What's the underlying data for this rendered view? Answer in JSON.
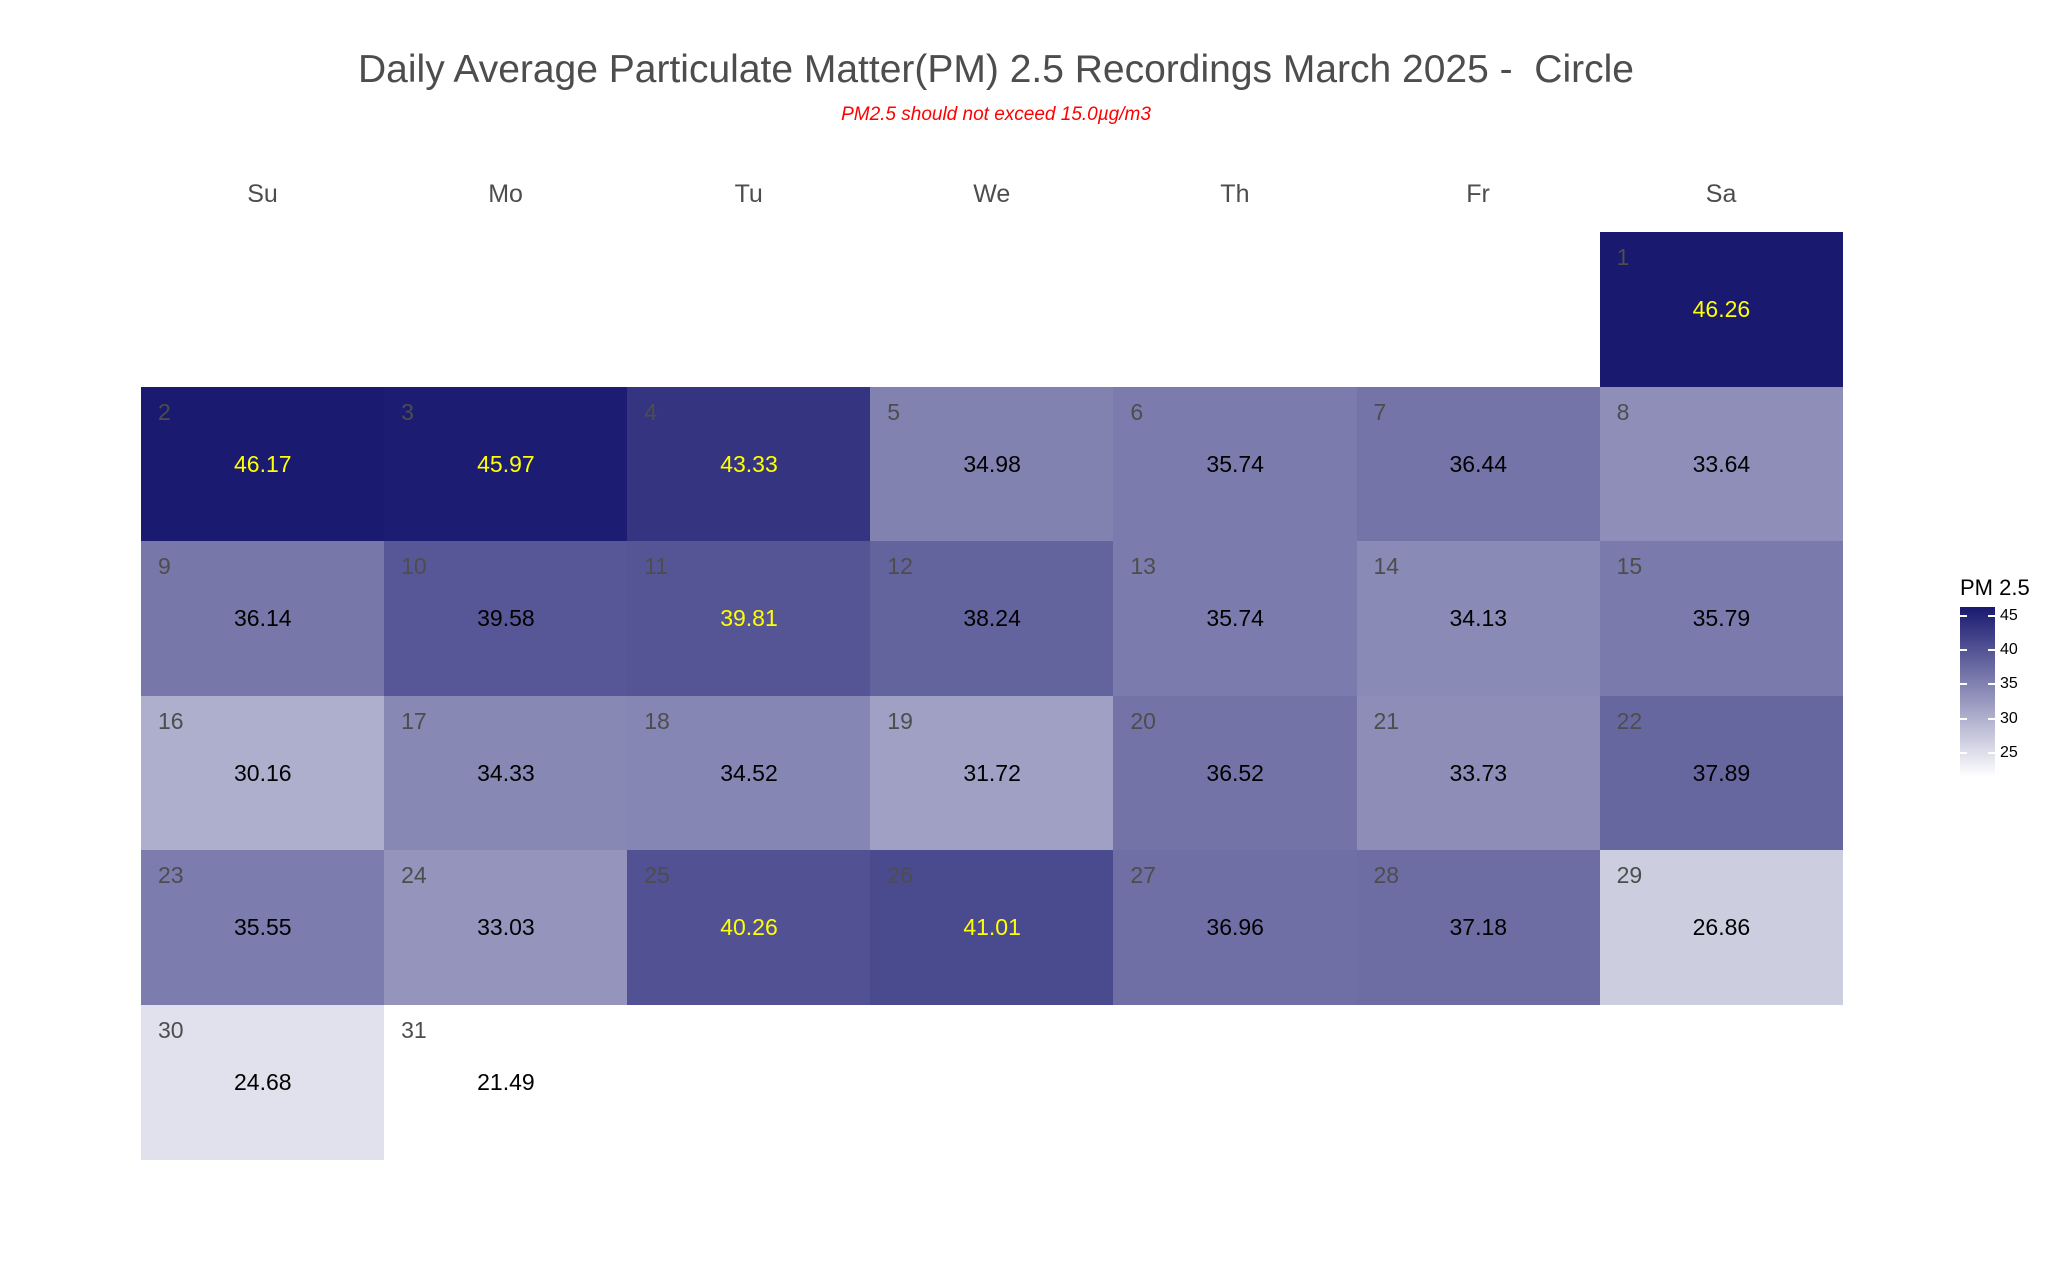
{
  "chart_data": {
    "type": "heatmap",
    "title": "Daily Average Particulate Matter(PM) 2.5 Recordings March 2025 -  Circle",
    "subtitle": "PM2.5 should not exceed 15.0µg/m3",
    "weekdays": [
      "Su",
      "Mo",
      "Tu",
      "We",
      "Th",
      "Fr",
      "Sa"
    ],
    "first_weekday_index": 6,
    "legend": {
      "title": "PM 2.5",
      "ticks": [
        25,
        30,
        35,
        40,
        45
      ],
      "range": [
        21.49,
        46.26
      ],
      "low_color": "#ffffff",
      "high_color": "#191970",
      "placement": "right"
    },
    "label_colors": {
      "dark": "#ffff00",
      "light": "#000000"
    },
    "days": [
      {
        "day": 1,
        "value": 46.26,
        "label_color": "dark"
      },
      {
        "day": 2,
        "value": 46.17,
        "label_color": "dark"
      },
      {
        "day": 3,
        "value": 45.97,
        "label_color": "dark"
      },
      {
        "day": 4,
        "value": 43.33,
        "label_color": "dark"
      },
      {
        "day": 5,
        "value": 34.98,
        "label_color": "light"
      },
      {
        "day": 6,
        "value": 35.74,
        "label_color": "light"
      },
      {
        "day": 7,
        "value": 36.44,
        "label_color": "light"
      },
      {
        "day": 8,
        "value": 33.64,
        "label_color": "light"
      },
      {
        "day": 9,
        "value": 36.14,
        "label_color": "light"
      },
      {
        "day": 10,
        "value": 39.58,
        "label_color": "light"
      },
      {
        "day": 11,
        "value": 39.81,
        "label_color": "dark"
      },
      {
        "day": 12,
        "value": 38.24,
        "label_color": "light"
      },
      {
        "day": 13,
        "value": 35.74,
        "label_color": "light"
      },
      {
        "day": 14,
        "value": 34.13,
        "label_color": "light"
      },
      {
        "day": 15,
        "value": 35.79,
        "label_color": "light"
      },
      {
        "day": 16,
        "value": 30.16,
        "label_color": "light"
      },
      {
        "day": 17,
        "value": 34.33,
        "label_color": "light"
      },
      {
        "day": 18,
        "value": 34.52,
        "label_color": "light"
      },
      {
        "day": 19,
        "value": 31.72,
        "label_color": "light"
      },
      {
        "day": 20,
        "value": 36.52,
        "label_color": "light"
      },
      {
        "day": 21,
        "value": 33.73,
        "label_color": "light"
      },
      {
        "day": 22,
        "value": 37.89,
        "label_color": "light"
      },
      {
        "day": 23,
        "value": 35.55,
        "label_color": "light"
      },
      {
        "day": 24,
        "value": 33.03,
        "label_color": "light"
      },
      {
        "day": 25,
        "value": 40.26,
        "label_color": "dark"
      },
      {
        "day": 26,
        "value": 41.01,
        "label_color": "dark"
      },
      {
        "day": 27,
        "value": 36.96,
        "label_color": "light"
      },
      {
        "day": 28,
        "value": 37.18,
        "label_color": "light"
      },
      {
        "day": 29,
        "value": 26.86,
        "label_color": "light"
      },
      {
        "day": 30,
        "value": 24.68,
        "label_color": "light"
      },
      {
        "day": 31,
        "value": 21.49,
        "label_color": "light"
      }
    ]
  }
}
